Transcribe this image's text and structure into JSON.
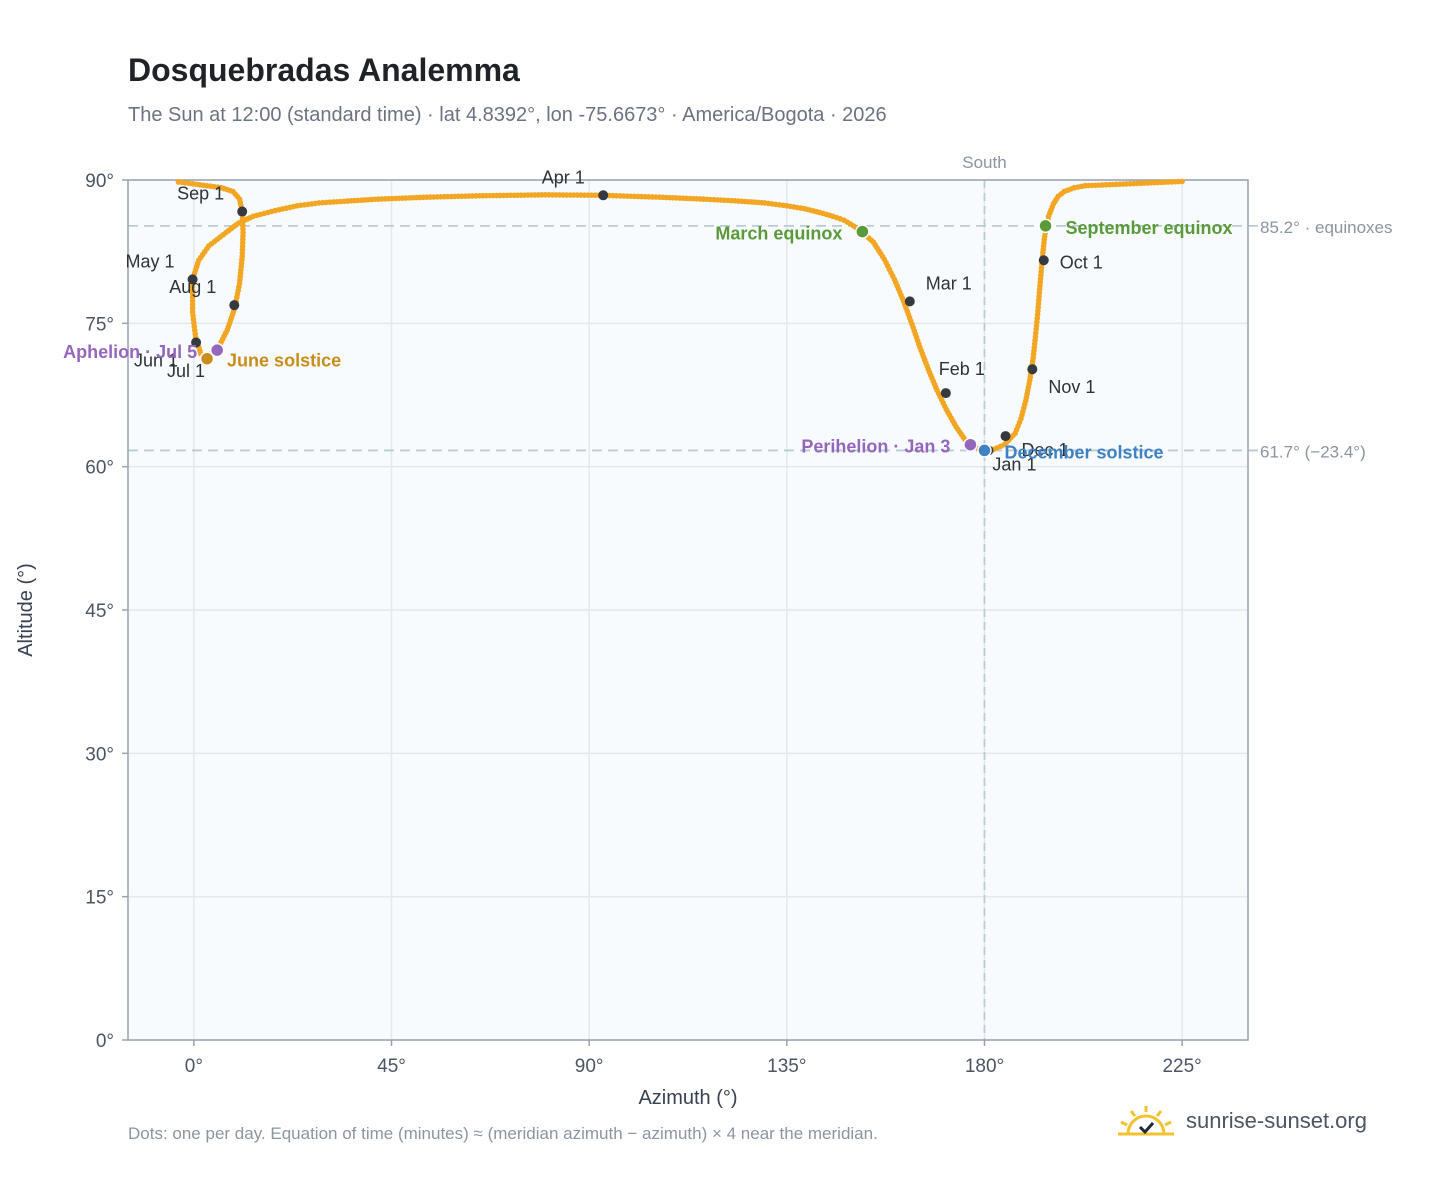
{
  "header": {
    "title": "Dosquebradas Analemma",
    "subtitle": "The Sun at 12:00 (standard time) · lat 4.8392°, lon -75.6673° · America/Bogota · 2026"
  },
  "footer": {
    "note": "Dots: one per day. Equation of time (minutes) ≈ (meridian azimuth − azimuth) × 4 near the meridian.",
    "brand": "sunrise-sunset.org",
    "brand_icon": "sun-logo-icon"
  },
  "colors": {
    "curve": "#f2a623",
    "month_dot": "#343a40",
    "equinox": "#5a9a3a",
    "june_solstice": "#c98d1c",
    "december_solstice": "#3f82c4",
    "apsis": "#9467bd",
    "plot_bg": "#f8fbfd",
    "grid": "#e3e8ee",
    "axis": "#98a2b3",
    "guide": "#b8cbd6"
  },
  "chart_data": {
    "type": "scatter",
    "title": "Dosquebradas Analemma",
    "xlabel": "Azimuth (°)",
    "ylabel": "Altitude (°)",
    "xlim": [
      -15,
      240
    ],
    "ylim": [
      0,
      90
    ],
    "xticks": [
      0,
      45,
      90,
      135,
      180,
      225
    ],
    "xtick_labels": [
      "0°",
      "45°",
      "90°",
      "135°",
      "180°",
      "225°"
    ],
    "yticks": [
      0,
      15,
      30,
      45,
      60,
      75,
      90
    ],
    "ytick_labels": [
      "0°",
      "15°",
      "30°",
      "45°",
      "60°",
      "75°",
      "90°"
    ],
    "grid": true,
    "south_marker": {
      "x": 180,
      "label": "South"
    },
    "reference_lines": [
      {
        "y": 85.2,
        "label": "85.2° · equinoxes"
      },
      {
        "y": 61.7,
        "label": "61.7° (−23.4°)"
      }
    ],
    "series": [
      {
        "points": [
          [
            182.0,
            61.8
          ],
          [
            184.5,
            62.3
          ],
          [
            187.0,
            63.5
          ],
          [
            188.3,
            65.0
          ],
          [
            189.4,
            66.9
          ],
          [
            190.3,
            69.0
          ],
          [
            191.1,
            71.4
          ],
          [
            191.6,
            73.6
          ],
          [
            192.1,
            75.9
          ],
          [
            192.5,
            78.2
          ],
          [
            192.9,
            80.4
          ],
          [
            193.3,
            82.4
          ],
          [
            193.7,
            84.1
          ],
          [
            194.6,
            86.2
          ],
          [
            195.7,
            87.5
          ],
          [
            196.8,
            88.3
          ],
          [
            198.2,
            88.8
          ],
          [
            200.5,
            89.2
          ],
          [
            202.9,
            89.4
          ],
          [
            225.0,
            89.85
          ],
          [
            -3.5,
            89.8
          ],
          [
            6.2,
            89.2
          ],
          [
            8.9,
            88.8
          ],
          [
            10.4,
            88.0
          ],
          [
            11.0,
            86.7
          ],
          [
            11.2,
            84.5
          ],
          [
            11.0,
            82.0
          ],
          [
            10.4,
            79.2
          ],
          [
            9.3,
            76.6
          ],
          [
            7.6,
            74.3
          ],
          [
            5.5,
            72.4
          ],
          [
            3.4,
            71.6
          ],
          [
            1.6,
            71.8
          ],
          [
            0.4,
            73.5
          ],
          [
            -0.3,
            76.2
          ],
          [
            -0.3,
            79.6
          ],
          [
            1.1,
            81.6
          ],
          [
            3.4,
            83.1
          ],
          [
            7.3,
            84.5
          ],
          [
            10.2,
            85.5
          ],
          [
            13.5,
            86.2
          ],
          [
            18.5,
            86.8
          ],
          [
            23.5,
            87.3
          ],
          [
            28.5,
            87.6
          ],
          [
            35.0,
            87.8
          ],
          [
            42.0,
            88.0
          ],
          [
            53.0,
            88.2
          ],
          [
            65.0,
            88.35
          ],
          [
            80.0,
            88.45
          ],
          [
            93.0,
            88.4
          ],
          [
            106.0,
            88.2
          ],
          [
            116.0,
            88.0
          ],
          [
            124.0,
            87.8
          ],
          [
            130.0,
            87.6
          ],
          [
            135.0,
            87.3
          ],
          [
            139.0,
            87.0
          ],
          [
            142.5,
            86.6
          ],
          [
            145.5,
            86.2
          ],
          [
            148.0,
            85.8
          ],
          [
            150.2,
            85.2
          ],
          [
            152.0,
            84.6
          ],
          [
            154.7,
            83.5
          ],
          [
            157.2,
            81.7
          ],
          [
            159.5,
            79.6
          ],
          [
            161.6,
            77.3
          ],
          [
            163.5,
            74.9
          ],
          [
            165.3,
            72.5
          ],
          [
            167.2,
            70.2
          ],
          [
            169.2,
            68.0
          ],
          [
            171.3,
            66.0
          ],
          [
            173.5,
            64.2
          ],
          [
            175.6,
            62.8
          ],
          [
            177.8,
            62.0
          ],
          [
            180.0,
            61.7
          ],
          [
            182.0,
            61.8
          ]
        ]
      }
    ],
    "month_markers": [
      {
        "label": "Jan 1",
        "x": 180.9,
        "y": 61.7
      },
      {
        "label": "Feb 1",
        "x": 171.2,
        "y": 67.7
      },
      {
        "label": "Mar 1",
        "x": 163.0,
        "y": 77.3
      },
      {
        "label": "Apr 1",
        "x": 93.2,
        "y": 88.4
      },
      {
        "label": "May 1",
        "x": -0.3,
        "y": 79.6
      },
      {
        "label": "Jun 1",
        "x": 0.5,
        "y": 73.0
      },
      {
        "label": "Jul 1",
        "x": 3.0,
        "y": 71.5
      },
      {
        "label": "Aug 1",
        "x": 9.2,
        "y": 76.9
      },
      {
        "label": "Sep 1",
        "x": 11.0,
        "y": 86.7
      },
      {
        "label": "Oct 1",
        "x": 193.5,
        "y": 81.6
      },
      {
        "label": "Nov 1",
        "x": 190.9,
        "y": 70.2
      },
      {
        "label": "Dec 1",
        "x": 184.8,
        "y": 63.2
      }
    ],
    "events": [
      {
        "label": "March equinox",
        "x": 152.2,
        "y": 84.6,
        "kind": "equinox"
      },
      {
        "label": "September equinox",
        "x": 193.9,
        "y": 85.2,
        "kind": "equinox"
      },
      {
        "label": "June solstice",
        "x": 3.0,
        "y": 71.3,
        "kind": "june_solstice"
      },
      {
        "label": "December solstice",
        "x": 180.0,
        "y": 61.7,
        "kind": "december_solstice"
      },
      {
        "label": "Aphelion · Jul 5",
        "x": 5.3,
        "y": 72.2,
        "kind": "apsis"
      },
      {
        "label": "Perihelion · Jan 3",
        "x": 176.8,
        "y": 62.3,
        "kind": "apsis"
      }
    ]
  }
}
